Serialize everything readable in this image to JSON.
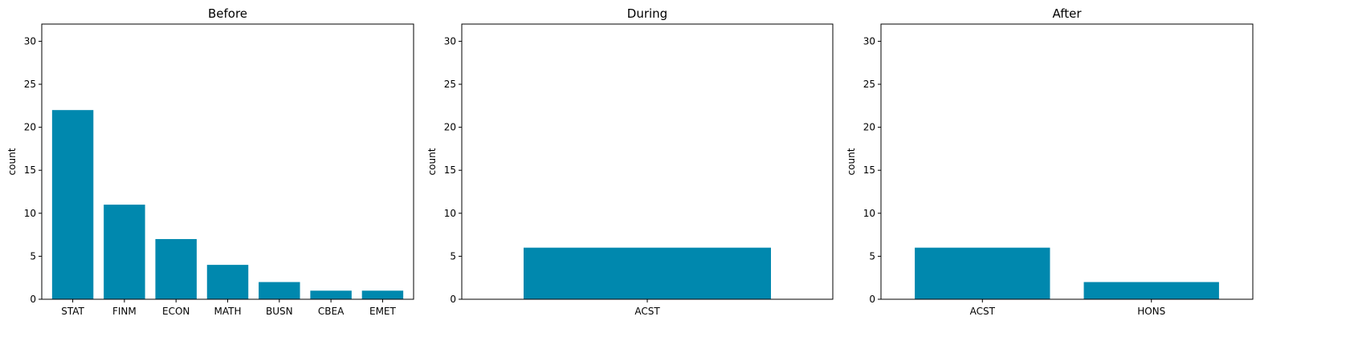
{
  "chart_data": [
    {
      "type": "bar",
      "title": "Before",
      "ylabel": "count",
      "categories": [
        "STAT",
        "FINM",
        "ECON",
        "MATH",
        "BUSN",
        "CBEA",
        "EMET"
      ],
      "values": [
        22,
        11,
        7,
        4,
        2,
        1,
        1
      ],
      "ylim": [
        0,
        32
      ],
      "yticks": [
        0,
        5,
        10,
        15,
        20,
        25,
        30
      ],
      "bar_color": "#0088ae",
      "grid": false
    },
    {
      "type": "bar",
      "title": "During",
      "ylabel": "count",
      "categories": [
        "ACST"
      ],
      "values": [
        6
      ],
      "ylim": [
        0,
        32
      ],
      "yticks": [
        0,
        5,
        10,
        15,
        20,
        25,
        30
      ],
      "bar_color": "#0088ae",
      "grid": false
    },
    {
      "type": "bar",
      "title": "After",
      "ylabel": "count",
      "categories": [
        "ACST",
        "HONS"
      ],
      "values": [
        6,
        2
      ],
      "ylim": [
        0,
        32
      ],
      "yticks": [
        0,
        5,
        10,
        15,
        20,
        25,
        30
      ],
      "bar_color": "#0088ae",
      "grid": false
    }
  ]
}
